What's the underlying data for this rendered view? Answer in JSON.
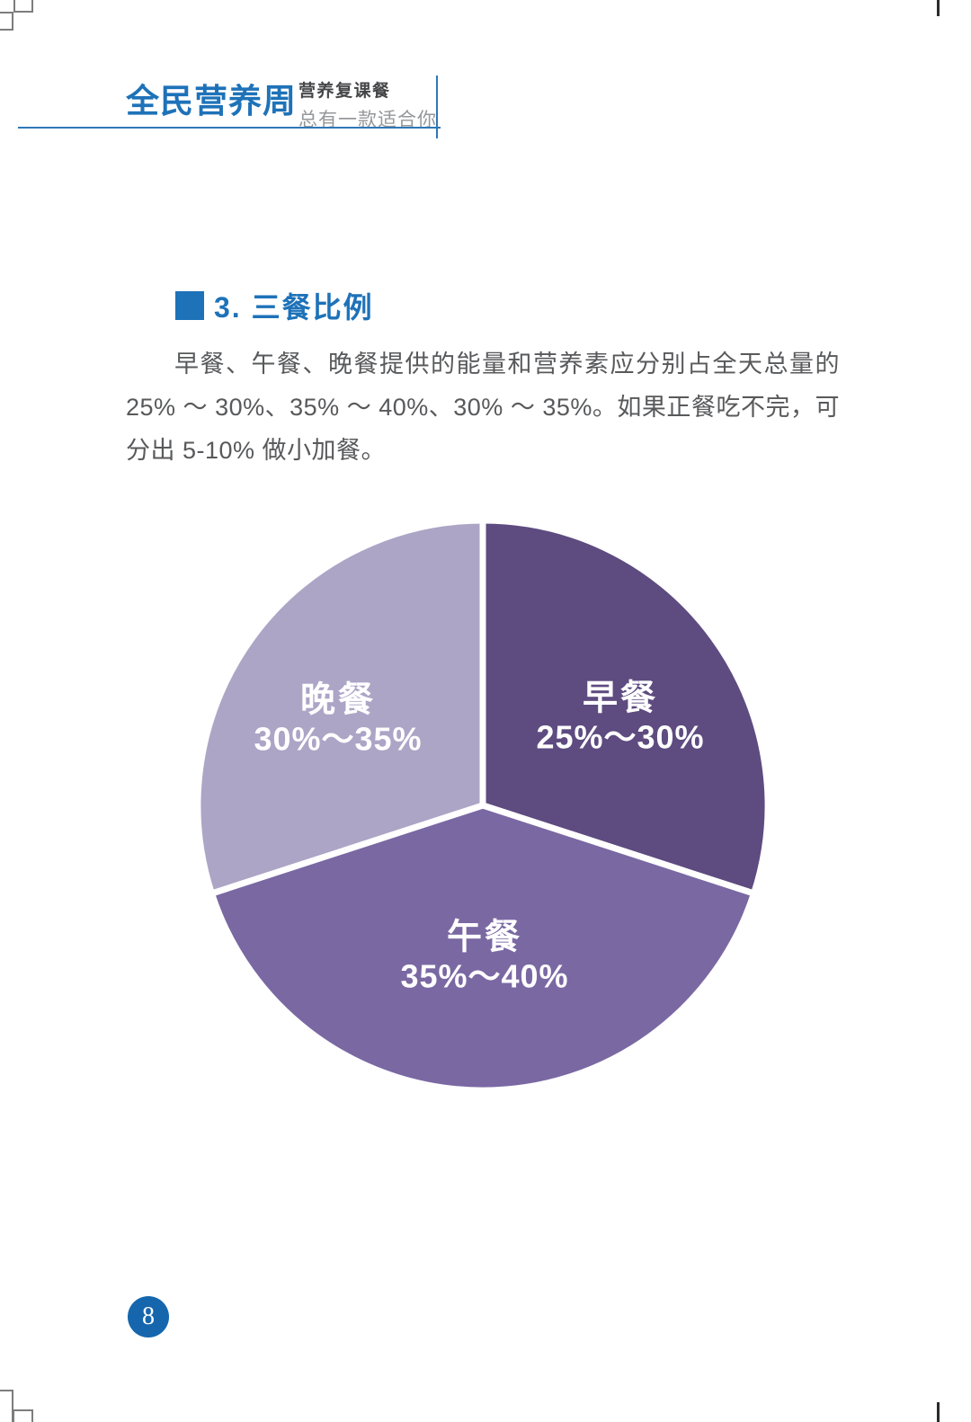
{
  "header": {
    "brand": "全民营养周",
    "tagline_top": "营养复课餐",
    "tagline_bottom": "总有一款适合你"
  },
  "section": {
    "title": "3. 三餐比例"
  },
  "body": {
    "paragraph": "早餐、午餐、晚餐提供的能量和营养素应分别占全天总量的25% ～ 30%、35% ～ 40%、30% ～ 35%。如果正餐吃不完，可分出 5-10% 做小加餐。"
  },
  "chart_data": {
    "type": "pie",
    "legend_position": "inside",
    "slices": [
      {
        "label": "早餐",
        "range": "25%～30%",
        "value": 30,
        "color": "#5e4b80"
      },
      {
        "label": "午餐",
        "range": "35%～40%",
        "value": 40,
        "color": "#7a68a3"
      },
      {
        "label": "晚餐",
        "range": "30%～35%",
        "value": 30,
        "color": "#aca5c6"
      }
    ]
  },
  "page": {
    "number": "8"
  },
  "colors": {
    "brand_blue": "#1e72b8",
    "rule_blue": "#2e77b6",
    "body_text": "#58595b",
    "page_badge_blue": "#1566ad"
  }
}
